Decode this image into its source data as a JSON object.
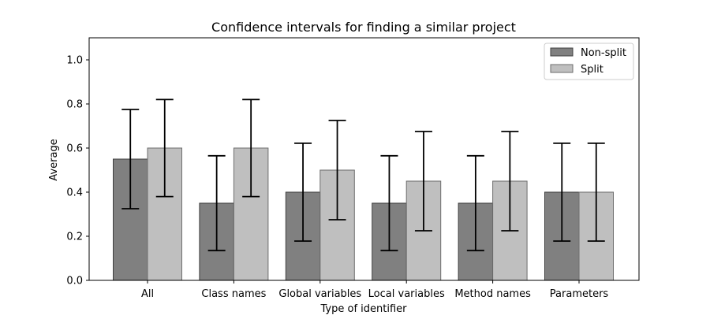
{
  "chart_data": {
    "type": "bar",
    "title": "Confidence intervals for finding a similar project",
    "xlabel": "Type of identifier",
    "ylabel": "Average",
    "ylim": [
      0,
      1.1
    ],
    "yticks": [
      "0.0",
      "0.2",
      "0.4",
      "0.6",
      "0.8",
      "1.0"
    ],
    "categories": [
      "All",
      "Class names",
      "Global variables",
      "Local variables",
      "Method names",
      "Parameters"
    ],
    "series": [
      {
        "name": "Non-split",
        "color": "#808080",
        "values": [
          0.55,
          0.35,
          0.4,
          0.35,
          0.35,
          0.4
        ],
        "ci_low": [
          0.325,
          0.135,
          0.178,
          0.135,
          0.135,
          0.178
        ],
        "ci_high": [
          0.775,
          0.565,
          0.622,
          0.565,
          0.565,
          0.622
        ]
      },
      {
        "name": "Split",
        "color": "#bfbfbf",
        "values": [
          0.6,
          0.6,
          0.5,
          0.45,
          0.45,
          0.4
        ],
        "ci_low": [
          0.38,
          0.38,
          0.275,
          0.225,
          0.225,
          0.178
        ],
        "ci_high": [
          0.82,
          0.82,
          0.725,
          0.675,
          0.675,
          0.622
        ]
      }
    ],
    "legend_position": "top-right",
    "grid": false
  }
}
